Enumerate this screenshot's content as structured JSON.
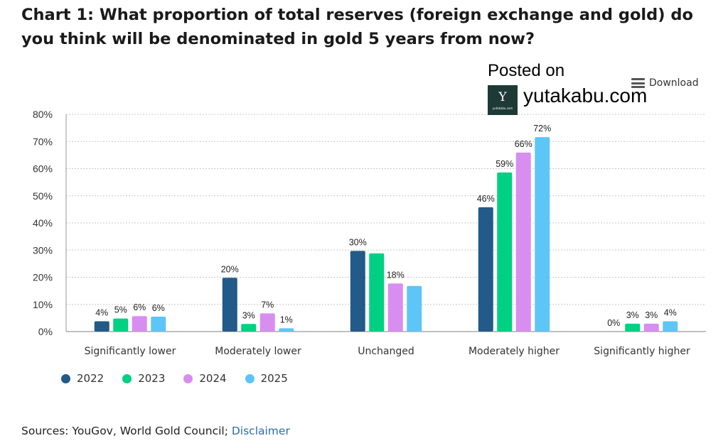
{
  "title": "Chart 1: What proportion of total reserves (foreign exchange and gold) do you think will be denominated in gold 5 years from now?",
  "watermark": {
    "posted_on": "Posted on",
    "site": "yutakabu.com",
    "logo_mark": "Y",
    "logo_sub": "yutakabu.com"
  },
  "download_label": "Download",
  "sources": {
    "text": "Sources: YouGov, World Gold Council; ",
    "link": "Disclaimer"
  },
  "colors": {
    "2022": "#225a88",
    "2023": "#00d084",
    "2024": "#d78ef0",
    "2025": "#5ec5f7"
  },
  "chart_data": {
    "type": "bar",
    "title": "Chart 1: What proportion of total reserves (foreign exchange and gold) do you think will be denominated in gold 5 years from now?",
    "xlabel": "",
    "ylabel": "",
    "ylim": [
      0,
      80
    ],
    "yticks": [
      0,
      10,
      20,
      30,
      40,
      50,
      60,
      70,
      80
    ],
    "ytick_labels": [
      "0%",
      "10%",
      "20%",
      "30%",
      "40%",
      "50%",
      "60%",
      "70%",
      "80%"
    ],
    "grid": true,
    "legend_position": "bottom-left",
    "categories": [
      "Significantly lower",
      "Moderately lower",
      "Unchanged",
      "Moderately higher",
      "Significantly higher"
    ],
    "series": [
      {
        "name": "2022",
        "values": [
          3.8,
          19.8,
          29.7,
          45.8,
          0
        ],
        "labels": [
          "4%",
          "20%",
          "30%",
          "46%",
          "0%"
        ]
      },
      {
        "name": "2023",
        "values": [
          4.8,
          2.8,
          28.8,
          58.6,
          2.9
        ],
        "labels": [
          "5%",
          "3%",
          "",
          "59%",
          "3%"
        ]
      },
      {
        "name": "2024",
        "values": [
          5.7,
          6.7,
          17.7,
          65.9,
          2.9
        ],
        "labels": [
          "6%",
          "7%",
          "18%",
          "66%",
          "3%"
        ]
      },
      {
        "name": "2025",
        "values": [
          5.5,
          1.2,
          16.8,
          71.6,
          3.8
        ],
        "labels": [
          "6%",
          "1%",
          "",
          "72%",
          "4%"
        ]
      }
    ]
  }
}
